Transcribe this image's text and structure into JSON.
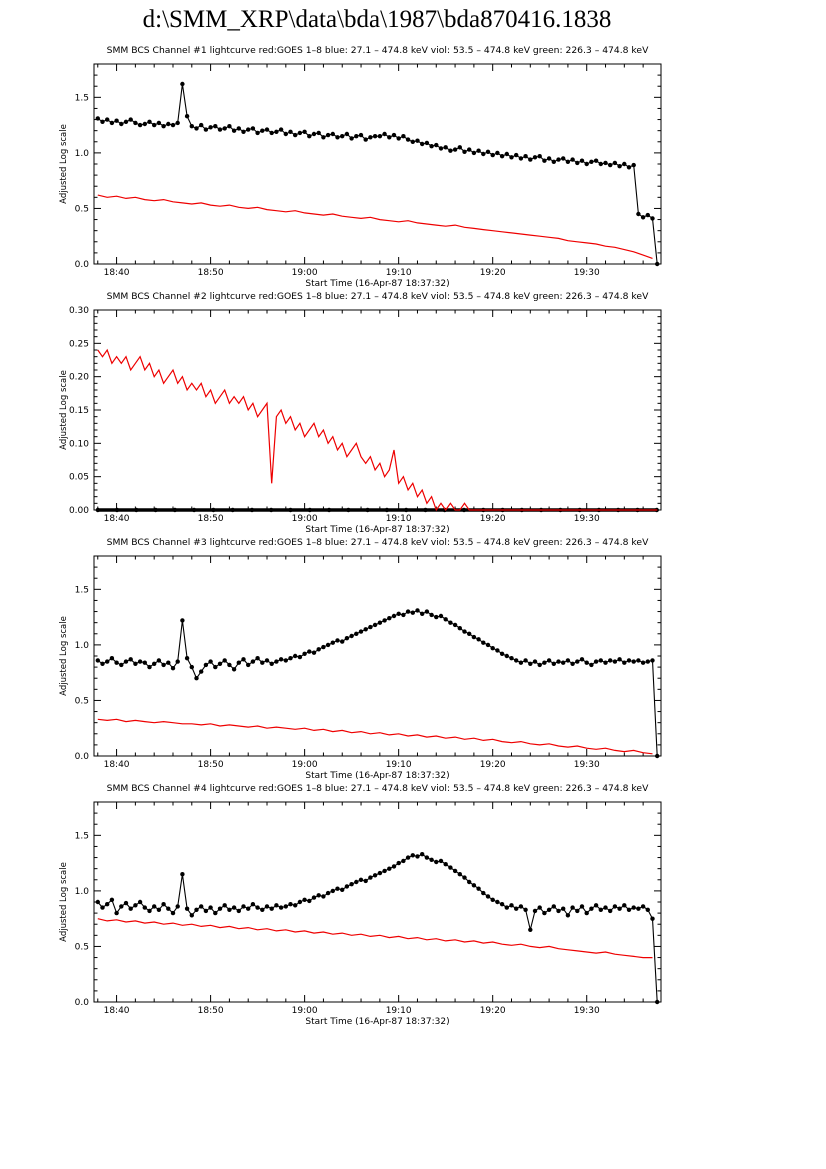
{
  "page_title": "d:\\SMM_XRP\\data\\bda\\1987\\bda870416.1838",
  "colors": {
    "background": "#ffffff",
    "axis": "#000000",
    "series_black": "#000000",
    "series_red": "#ee0000",
    "text": "#000000"
  },
  "axis_labels": {
    "x": "Start Time (16-Apr-87 18:37:32)",
    "y": "Adjusted Log scale"
  },
  "chart_data": [
    {
      "type": "line",
      "title": "SMM BCS Channel #1 lightcurve  red:GOES 1–8  blue: 27.1 – 474.8 keV  viol: 53.5 – 474.8 keV  green: 226.3 – 474.8 keV",
      "xlabel": "Start Time (16-Apr-87 18:37:32)",
      "ylabel": "Adjusted Log scale",
      "x_unit": "minutes after 18:00 on 16-Apr-87",
      "xlim": [
        37.6,
        97.9
      ],
      "ylim": [
        0,
        1.8
      ],
      "xticks": [
        40,
        50,
        60,
        70,
        80,
        90
      ],
      "xtick_labels": [
        "18:40",
        "18:50",
        "19:00",
        "19:10",
        "19:20",
        "19:30"
      ],
      "yticks": [
        0,
        0.5,
        1.0,
        1.5
      ],
      "ytick_labels": [
        "0.0",
        "0.5",
        "1.0",
        "1.5"
      ],
      "x_minor_step": 2,
      "y_minor_step": 0.1,
      "grid": false,
      "series": [
        {
          "key": "bcs-counts-black",
          "name": "BCS Channel #1 counts (black, dotted curve)",
          "color": "#000000",
          "marker": true,
          "marker_radius": 2.2,
          "line_width": 1.1,
          "t0": 38,
          "dt": 0.5,
          "values": [
            1.31,
            1.28,
            1.3,
            1.27,
            1.29,
            1.26,
            1.28,
            1.3,
            1.27,
            1.25,
            1.26,
            1.28,
            1.25,
            1.27,
            1.24,
            1.26,
            1.25,
            1.27,
            1.62,
            1.33,
            1.24,
            1.22,
            1.25,
            1.21,
            1.23,
            1.24,
            1.21,
            1.22,
            1.24,
            1.2,
            1.22,
            1.19,
            1.21,
            1.22,
            1.18,
            1.2,
            1.21,
            1.18,
            1.19,
            1.21,
            1.17,
            1.19,
            1.16,
            1.18,
            1.19,
            1.15,
            1.17,
            1.18,
            1.14,
            1.16,
            1.17,
            1.14,
            1.15,
            1.17,
            1.13,
            1.15,
            1.16,
            1.12,
            1.14,
            1.15,
            1.15,
            1.17,
            1.14,
            1.16,
            1.13,
            1.15,
            1.12,
            1.1,
            1.11,
            1.08,
            1.09,
            1.06,
            1.07,
            1.04,
            1.05,
            1.02,
            1.03,
            1.05,
            1.01,
            1.03,
            1.0,
            1.02,
            0.99,
            1.01,
            0.98,
            1.0,
            0.97,
            0.99,
            0.96,
            0.98,
            0.95,
            0.97,
            0.94,
            0.96,
            0.97,
            0.93,
            0.95,
            0.92,
            0.94,
            0.95,
            0.92,
            0.94,
            0.91,
            0.93,
            0.9,
            0.92,
            0.93,
            0.9,
            0.91,
            0.89,
            0.91,
            0.88,
            0.9,
            0.87,
            0.89,
            0.45,
            0.42,
            0.44,
            0.41,
            0.0
          ]
        },
        {
          "key": "goes-red",
          "name": "GOES 1–8 (red curve)",
          "color": "#ee0000",
          "marker": false,
          "line_width": 1.2,
          "t0": 38,
          "dt": 1,
          "values": [
            0.62,
            0.6,
            0.61,
            0.59,
            0.6,
            0.58,
            0.57,
            0.58,
            0.56,
            0.55,
            0.54,
            0.55,
            0.53,
            0.52,
            0.53,
            0.51,
            0.5,
            0.51,
            0.49,
            0.48,
            0.47,
            0.48,
            0.46,
            0.45,
            0.44,
            0.45,
            0.43,
            0.42,
            0.41,
            0.42,
            0.4,
            0.39,
            0.38,
            0.39,
            0.37,
            0.36,
            0.35,
            0.34,
            0.35,
            0.33,
            0.32,
            0.31,
            0.3,
            0.29,
            0.28,
            0.27,
            0.26,
            0.25,
            0.24,
            0.23,
            0.21,
            0.2,
            0.19,
            0.18,
            0.16,
            0.15,
            0.13,
            0.11,
            0.08,
            0.05
          ]
        }
      ]
    },
    {
      "type": "line",
      "title": "SMM BCS Channel #2 lightcurve  red:GOES 1–8  blue: 27.1 – 474.8 keV  viol: 53.5 – 474.8 keV  green: 226.3 – 474.8 keV",
      "xlabel": "Start Time (16-Apr-87 18:37:32)",
      "ylabel": "Adjusted Log scale",
      "x_unit": "minutes after 18:00 on 16-Apr-87",
      "xlim": [
        37.6,
        97.9
      ],
      "ylim": [
        0,
        0.3
      ],
      "xticks": [
        40,
        50,
        60,
        70,
        80,
        90
      ],
      "xtick_labels": [
        "18:40",
        "18:50",
        "19:00",
        "19:10",
        "19:20",
        "19:30"
      ],
      "yticks": [
        0,
        0.05,
        0.1,
        0.15,
        0.2,
        0.25,
        0.3
      ],
      "ytick_labels": [
        "0.00",
        "0.05",
        "0.10",
        "0.15",
        "0.20",
        "0.25",
        "0.30"
      ],
      "x_minor_step": 2,
      "y_minor_step": 0.01,
      "grid": false,
      "series": [
        {
          "key": "bcs-counts-black",
          "name": "BCS Channel #2 counts (black, flat at zero)",
          "color": "#000000",
          "marker": true,
          "marker_radius": 2.2,
          "line_width": 3.5,
          "t0": 38,
          "dt": 2.05,
          "values": [
            0,
            0,
            0,
            0,
            0,
            0,
            0,
            0,
            0,
            0,
            0,
            0,
            0,
            0,
            0,
            0,
            0,
            0,
            0,
            0,
            0,
            0,
            0,
            0,
            0,
            0,
            0,
            0,
            0,
            0
          ]
        },
        {
          "key": "goes-red",
          "name": "GOES 1–8 (red curve)",
          "color": "#ee0000",
          "marker": false,
          "line_width": 1.2,
          "t0": 38,
          "dt": 0.5,
          "values": [
            0.24,
            0.23,
            0.24,
            0.22,
            0.23,
            0.22,
            0.23,
            0.21,
            0.22,
            0.23,
            0.21,
            0.22,
            0.2,
            0.21,
            0.19,
            0.2,
            0.21,
            0.19,
            0.2,
            0.18,
            0.19,
            0.18,
            0.19,
            0.17,
            0.18,
            0.16,
            0.17,
            0.18,
            0.16,
            0.17,
            0.16,
            0.17,
            0.15,
            0.16,
            0.14,
            0.15,
            0.16,
            0.04,
            0.14,
            0.15,
            0.13,
            0.14,
            0.12,
            0.13,
            0.11,
            0.12,
            0.13,
            0.11,
            0.12,
            0.1,
            0.11,
            0.09,
            0.1,
            0.08,
            0.09,
            0.1,
            0.08,
            0.07,
            0.08,
            0.06,
            0.07,
            0.05,
            0.06,
            0.09,
            0.04,
            0.05,
            0.03,
            0.04,
            0.02,
            0.03,
            0.01,
            0.02,
            0.0,
            0.01,
            0.0,
            0.01,
            0.0,
            0.0,
            0.01,
            0.0,
            0.0,
            0.0,
            0.0,
            0.0,
            0.0,
            0.0,
            0.0,
            0.0,
            0.0,
            0.0,
            0.0,
            0.0,
            0.0,
            0.0,
            0.0,
            0.0,
            0.0,
            0.0,
            0.0,
            0.0,
            0.0,
            0.0,
            0.0,
            0.0,
            0.0,
            0.0,
            0.0,
            0.0,
            0.0,
            0.0,
            0.0,
            0.0,
            0.0,
            0.0,
            0.0,
            0.0,
            0.0,
            0.0,
            0.0,
            0.0
          ]
        }
      ]
    },
    {
      "type": "line",
      "title": "SMM BCS Channel #3 lightcurve  red:GOES 1–8  blue: 27.1 – 474.8 keV  viol: 53.5 – 474.8 keV  green: 226.3 – 474.8 keV",
      "xlabel": "Start Time (16-Apr-87 18:37:32)",
      "ylabel": "Adjusted Log scale",
      "x_unit": "minutes after 18:00 on 16-Apr-87",
      "xlim": [
        37.6,
        97.9
      ],
      "ylim": [
        0,
        1.8
      ],
      "xticks": [
        40,
        50,
        60,
        70,
        80,
        90
      ],
      "xtick_labels": [
        "18:40",
        "18:50",
        "19:00",
        "19:10",
        "19:20",
        "19:30"
      ],
      "yticks": [
        0,
        0.5,
        1.0,
        1.5
      ],
      "ytick_labels": [
        "0.0",
        "0.5",
        "1.0",
        "1.5"
      ],
      "x_minor_step": 2,
      "y_minor_step": 0.1,
      "grid": false,
      "series": [
        {
          "key": "bcs-counts-black",
          "name": "BCS Channel #3 counts (black, dotted curve)",
          "color": "#000000",
          "marker": true,
          "marker_radius": 2.2,
          "line_width": 1.1,
          "t0": 38,
          "dt": 0.5,
          "values": [
            0.86,
            0.83,
            0.85,
            0.88,
            0.84,
            0.82,
            0.85,
            0.87,
            0.83,
            0.85,
            0.84,
            0.8,
            0.83,
            0.86,
            0.82,
            0.84,
            0.79,
            0.85,
            1.22,
            0.88,
            0.8,
            0.7,
            0.76,
            0.82,
            0.85,
            0.8,
            0.83,
            0.86,
            0.82,
            0.78,
            0.84,
            0.87,
            0.82,
            0.85,
            0.88,
            0.84,
            0.86,
            0.83,
            0.85,
            0.87,
            0.86,
            0.88,
            0.9,
            0.89,
            0.92,
            0.94,
            0.93,
            0.96,
            0.98,
            1.0,
            1.02,
            1.04,
            1.03,
            1.06,
            1.08,
            1.1,
            1.12,
            1.14,
            1.16,
            1.18,
            1.2,
            1.22,
            1.24,
            1.26,
            1.28,
            1.27,
            1.3,
            1.29,
            1.31,
            1.28,
            1.3,
            1.27,
            1.25,
            1.26,
            1.23,
            1.2,
            1.18,
            1.15,
            1.12,
            1.1,
            1.07,
            1.05,
            1.02,
            1.0,
            0.97,
            0.95,
            0.92,
            0.9,
            0.88,
            0.86,
            0.84,
            0.86,
            0.83,
            0.85,
            0.82,
            0.84,
            0.86,
            0.83,
            0.85,
            0.84,
            0.86,
            0.83,
            0.85,
            0.87,
            0.84,
            0.82,
            0.85,
            0.86,
            0.84,
            0.86,
            0.85,
            0.87,
            0.84,
            0.86,
            0.85,
            0.86,
            0.84,
            0.85,
            0.86,
            0.0
          ]
        },
        {
          "key": "goes-red",
          "name": "GOES 1–8 (red curve)",
          "color": "#ee0000",
          "marker": false,
          "line_width": 1.2,
          "t0": 38,
          "dt": 1,
          "values": [
            0.33,
            0.32,
            0.33,
            0.31,
            0.32,
            0.31,
            0.3,
            0.31,
            0.3,
            0.29,
            0.29,
            0.28,
            0.29,
            0.27,
            0.28,
            0.27,
            0.26,
            0.27,
            0.25,
            0.26,
            0.25,
            0.24,
            0.25,
            0.23,
            0.24,
            0.22,
            0.23,
            0.21,
            0.22,
            0.2,
            0.21,
            0.19,
            0.2,
            0.18,
            0.19,
            0.17,
            0.18,
            0.16,
            0.17,
            0.15,
            0.16,
            0.14,
            0.15,
            0.13,
            0.12,
            0.13,
            0.11,
            0.1,
            0.11,
            0.09,
            0.08,
            0.09,
            0.07,
            0.06,
            0.07,
            0.05,
            0.04,
            0.05,
            0.03,
            0.02
          ]
        }
      ]
    },
    {
      "type": "line",
      "title": "SMM BCS Channel #4 lightcurve  red:GOES 1–8  blue: 27.1 – 474.8 keV  viol: 53.5 – 474.8 keV  green: 226.3 – 474.8 keV",
      "xlabel": "Start Time (16-Apr-87 18:37:32)",
      "ylabel": "Adjusted Log scale",
      "x_unit": "minutes after 18:00 on 16-Apr-87",
      "xlim": [
        37.6,
        97.9
      ],
      "ylim": [
        0,
        1.8
      ],
      "xticks": [
        40,
        50,
        60,
        70,
        80,
        90
      ],
      "xtick_labels": [
        "18:40",
        "18:50",
        "19:00",
        "19:10",
        "19:20",
        "19:30"
      ],
      "yticks": [
        0,
        0.5,
        1.0,
        1.5
      ],
      "ytick_labels": [
        "0.0",
        "0.5",
        "1.0",
        "1.5"
      ],
      "x_minor_step": 2,
      "y_minor_step": 0.1,
      "grid": false,
      "series": [
        {
          "key": "bcs-counts-black",
          "name": "BCS Channel #4 counts (black, dotted curve)",
          "color": "#000000",
          "marker": true,
          "marker_radius": 2.2,
          "line_width": 1.1,
          "t0": 38,
          "dt": 0.5,
          "values": [
            0.9,
            0.85,
            0.88,
            0.92,
            0.8,
            0.86,
            0.89,
            0.84,
            0.87,
            0.9,
            0.85,
            0.82,
            0.86,
            0.83,
            0.88,
            0.84,
            0.8,
            0.86,
            1.15,
            0.84,
            0.78,
            0.83,
            0.86,
            0.82,
            0.85,
            0.8,
            0.84,
            0.87,
            0.83,
            0.85,
            0.82,
            0.86,
            0.84,
            0.88,
            0.85,
            0.83,
            0.86,
            0.84,
            0.87,
            0.85,
            0.86,
            0.88,
            0.87,
            0.9,
            0.92,
            0.91,
            0.94,
            0.96,
            0.95,
            0.98,
            1.0,
            1.02,
            1.01,
            1.04,
            1.06,
            1.08,
            1.1,
            1.09,
            1.12,
            1.14,
            1.16,
            1.18,
            1.2,
            1.22,
            1.25,
            1.27,
            1.3,
            1.32,
            1.31,
            1.33,
            1.3,
            1.28,
            1.26,
            1.27,
            1.24,
            1.21,
            1.18,
            1.15,
            1.12,
            1.08,
            1.05,
            1.02,
            0.98,
            0.95,
            0.92,
            0.9,
            0.88,
            0.85,
            0.87,
            0.84,
            0.86,
            0.83,
            0.65,
            0.82,
            0.85,
            0.8,
            0.83,
            0.86,
            0.82,
            0.84,
            0.78,
            0.85,
            0.82,
            0.86,
            0.8,
            0.84,
            0.87,
            0.83,
            0.85,
            0.82,
            0.86,
            0.84,
            0.87,
            0.83,
            0.85,
            0.84,
            0.86,
            0.83,
            0.75,
            0.0
          ]
        },
        {
          "key": "goes-red",
          "name": "GOES 1–8 (red curve)",
          "color": "#ee0000",
          "marker": false,
          "line_width": 1.2,
          "t0": 38,
          "dt": 1,
          "values": [
            0.75,
            0.73,
            0.74,
            0.72,
            0.73,
            0.71,
            0.72,
            0.7,
            0.71,
            0.69,
            0.7,
            0.68,
            0.69,
            0.67,
            0.68,
            0.66,
            0.67,
            0.65,
            0.66,
            0.64,
            0.65,
            0.63,
            0.64,
            0.62,
            0.63,
            0.61,
            0.62,
            0.6,
            0.61,
            0.59,
            0.6,
            0.58,
            0.59,
            0.57,
            0.58,
            0.56,
            0.57,
            0.55,
            0.56,
            0.54,
            0.55,
            0.53,
            0.54,
            0.52,
            0.51,
            0.52,
            0.5,
            0.49,
            0.5,
            0.48,
            0.47,
            0.46,
            0.45,
            0.44,
            0.45,
            0.43,
            0.42,
            0.41,
            0.4,
            0.4
          ]
        }
      ]
    }
  ]
}
